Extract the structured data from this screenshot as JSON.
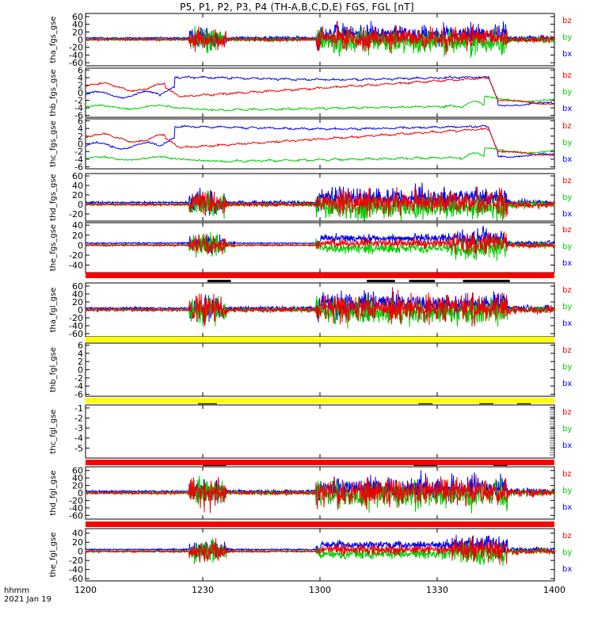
{
  "title": "P5, P1, P2, P3, P4 (TH-A,B,C,D,E) FGS, FGL [nT]",
  "footer": {
    "time_label": "hhmm",
    "date_label": "2021 Jan 19"
  },
  "x_ticks": [
    "1200",
    "1230",
    "1300",
    "1330",
    "1400"
  ],
  "colors": {
    "bx": "#0000ee",
    "by": "#00cc00",
    "bz": "#ee0000",
    "bar_red": "#ff0000",
    "bar_yellow": "#ffff00",
    "mode_black": "#000000"
  },
  "chart_data": [
    {
      "type": "line",
      "ylabel": "tha_fgs_gse",
      "ylim": [
        -68,
        68
      ],
      "yticks": [
        60,
        40,
        20,
        0,
        -20,
        -40,
        -60
      ],
      "legend": [
        "bz",
        "by",
        "bx"
      ],
      "style": "burst",
      "amp": [
        15,
        16,
        14
      ]
    },
    {
      "type": "line",
      "ylabel": "thb_fgs_gse",
      "ylim": [
        -6.5,
        6.5
      ],
      "yticks": [
        6,
        4,
        2,
        0,
        -2,
        -4,
        -6
      ],
      "legend": [
        "bz",
        "by",
        "bx"
      ],
      "style": "smooth"
    },
    {
      "type": "line",
      "ylabel": "thc_fgs_gse",
      "ylim": [
        -6.5,
        6.5
      ],
      "yticks": [
        6,
        4,
        2,
        0,
        -2,
        -4,
        -6
      ],
      "legend": [
        "bz",
        "by",
        "bx"
      ],
      "style": "smooth"
    },
    {
      "type": "line",
      "ylabel": "thd_fgs_gse",
      "ylim": [
        -35,
        65
      ],
      "yticks": [
        60,
        40,
        20,
        0,
        -20
      ],
      "legend": [
        "bz",
        "by",
        "bx"
      ],
      "style": "burst",
      "amp": [
        14,
        14,
        12
      ]
    },
    {
      "type": "line",
      "ylabel": "the_fgs_gse",
      "ylim": [
        -55,
        45
      ],
      "yticks": [
        40,
        20,
        0,
        -20,
        -40
      ],
      "legend": [
        "bz",
        "by",
        "bx"
      ],
      "style": "burst",
      "amp": [
        10,
        11,
        9
      ]
    },
    {
      "type": "line",
      "ylabel": "tha_fgl_gse",
      "ylim": [
        -68,
        68
      ],
      "yticks": [
        60,
        40,
        20,
        0,
        -20,
        -40,
        -60
      ],
      "legend": [
        "bz",
        "by",
        "bx"
      ],
      "style": "burst",
      "amp": [
        19,
        17,
        15
      ]
    },
    {
      "type": "line",
      "ylabel": "thb_fgl_gse",
      "ylim": [
        -6.5,
        6.5
      ],
      "yticks": [
        6,
        4,
        2,
        0,
        -2,
        -4,
        -6
      ],
      "legend": [
        "bz",
        "by",
        "bx"
      ],
      "style": "empty"
    },
    {
      "type": "line",
      "ylabel": "thc_fgl_gse",
      "ylim": [
        -6,
        -0.7
      ],
      "yticks": [
        -1,
        -2,
        -3,
        -4,
        -5
      ],
      "legend": [
        "bz",
        "by",
        "bx"
      ],
      "style": "empty"
    },
    {
      "type": "line",
      "ylabel": "thd_fgl_gse",
      "ylim": [
        -70,
        70
      ],
      "yticks": [
        60,
        40,
        20,
        0,
        -20,
        -40,
        -60
      ],
      "legend": [
        "bz",
        "by",
        "bx"
      ],
      "style": "burst",
      "amp": [
        19,
        18,
        16
      ]
    },
    {
      "type": "line",
      "ylabel": "the_fgl_gse",
      "ylim": [
        -65,
        50
      ],
      "yticks": [
        40,
        20,
        0,
        -20,
        -40,
        -60
      ],
      "legend": [
        "bz",
        "by",
        "bx"
      ],
      "style": "burst",
      "amp": [
        12,
        12,
        10
      ]
    }
  ]
}
